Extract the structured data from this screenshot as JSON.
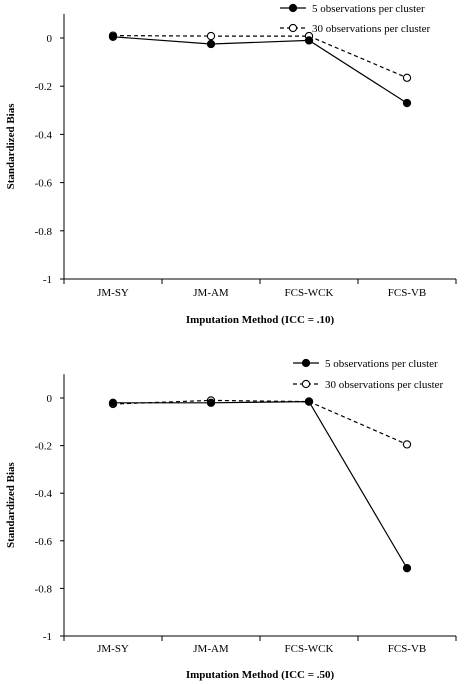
{
  "chart_data": [
    {
      "type": "line",
      "title": "",
      "xlabel": "Imputation Method (ICC = .10)",
      "ylabel": "Standardized Bias",
      "categories": [
        "JM-SY",
        "JM-AM",
        "FCS-WCK",
        "FCS-VB"
      ],
      "ylim": [
        -1,
        0.1
      ],
      "yticks": [
        0,
        -0.2,
        -0.4,
        -0.6,
        -0.8,
        -1
      ],
      "ytick_labels": [
        "0",
        "-0.2",
        "-0.4",
        "-0.6",
        "-0.8",
        "-1"
      ],
      "legend_position": "top-right",
      "grid": false,
      "series": [
        {
          "name": "5 observations per cluster",
          "values": [
            0.005,
            -0.025,
            -0.01,
            -0.27
          ],
          "marker": "filled-circle",
          "line": "solid"
        },
        {
          "name": "30 observations per cluster",
          "values": [
            0.01,
            0.008,
            0.008,
            -0.165
          ],
          "marker": "open-circle",
          "line": "dashed"
        }
      ]
    },
    {
      "type": "line",
      "title": "",
      "xlabel": "Imputation Method (ICC = .50)",
      "ylabel": "Standardized Bias",
      "categories": [
        "JM-SY",
        "JM-AM",
        "FCS-WCK",
        "FCS-VB"
      ],
      "ylim": [
        -1,
        0.1
      ],
      "yticks": [
        0,
        -0.2,
        -0.4,
        -0.6,
        -0.8,
        -1
      ],
      "ytick_labels": [
        "0",
        "-0.2",
        "-0.4",
        "-0.6",
        "-0.8",
        "-1"
      ],
      "legend_position": "top-right",
      "grid": false,
      "series": [
        {
          "name": "5 observations per cluster",
          "values": [
            -0.02,
            -0.02,
            -0.015,
            -0.715
          ],
          "marker": "filled-circle",
          "line": "solid"
        },
        {
          "name": "30 observations per cluster",
          "values": [
            -0.025,
            -0.01,
            -0.015,
            -0.195
          ],
          "marker": "open-circle",
          "line": "dashed"
        }
      ]
    }
  ]
}
